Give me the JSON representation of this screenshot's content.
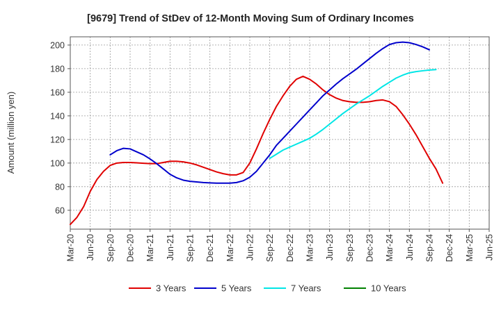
{
  "chart_data": {
    "type": "line",
    "title": "[9679]  Trend of StDev of 12-Month Moving Sum of Ordinary Incomes",
    "xlabel": "",
    "ylabel": "Amount (million yen)",
    "ylim": [
      44,
      207
    ],
    "yticks": [
      60,
      80,
      100,
      120,
      140,
      160,
      180,
      200
    ],
    "x_start": "Mar-20",
    "x_end": "Jun-25",
    "xticks": [
      "Mar-20",
      "Jun-20",
      "Sep-20",
      "Dec-20",
      "Mar-21",
      "Jun-21",
      "Sep-21",
      "Dec-21",
      "Mar-22",
      "Jun-22",
      "Sep-22",
      "Dec-22",
      "Mar-23",
      "Jun-23",
      "Sep-23",
      "Dec-23",
      "Mar-24",
      "Jun-24",
      "Sep-24",
      "Dec-24",
      "Mar-25",
      "Jun-25"
    ],
    "grid": true,
    "legend_position": "bottom",
    "series": [
      {
        "name": "3 Years",
        "color": "#e00000",
        "start_month": 0,
        "values": [
          48,
          54,
          63,
          76,
          86,
          93,
          98,
          100,
          100.5,
          100.5,
          100.2,
          99.8,
          99.5,
          99.5,
          100.5,
          101.5,
          101.5,
          101,
          100,
          98.5,
          96.5,
          94.5,
          92.5,
          91,
          90,
          90,
          92,
          100,
          112,
          125,
          137,
          148,
          157,
          165,
          171,
          173.5,
          171,
          167,
          162,
          158,
          155,
          153,
          152,
          151.5,
          151.5,
          152,
          153,
          153.5,
          152,
          148,
          141,
          133,
          124,
          114,
          104,
          95,
          83
        ]
      },
      {
        "name": "5 Years",
        "color": "#0000cc",
        "start_month": 6,
        "values": [
          107,
          110.5,
          112.5,
          112,
          109.5,
          107,
          103.5,
          99.5,
          95,
          90.5,
          87.5,
          85.5,
          84.5,
          84,
          83.5,
          83.2,
          83,
          83,
          83,
          83.5,
          85,
          88,
          93,
          100,
          107,
          115,
          121,
          127,
          133,
          139,
          145,
          151,
          157,
          162,
          167,
          171.5,
          175.5,
          179.5,
          184,
          188.5,
          193,
          197,
          200.5,
          202,
          202.5,
          202,
          200.5,
          198.5,
          196
        ]
      },
      {
        "name": "7 Years",
        "color": "#00e6e6",
        "start_month": 30,
        "values": [
          104,
          107.5,
          111,
          113.5,
          116,
          118.5,
          121,
          124.5,
          128.5,
          133,
          137.5,
          142,
          146,
          150,
          153.5,
          157,
          161,
          165,
          168.5,
          172,
          174.5,
          176.5,
          177.5,
          178.2,
          178.8,
          179.2
        ]
      },
      {
        "name": "10 Years",
        "color": "#008000",
        "start_month": 0,
        "values": []
      }
    ]
  }
}
